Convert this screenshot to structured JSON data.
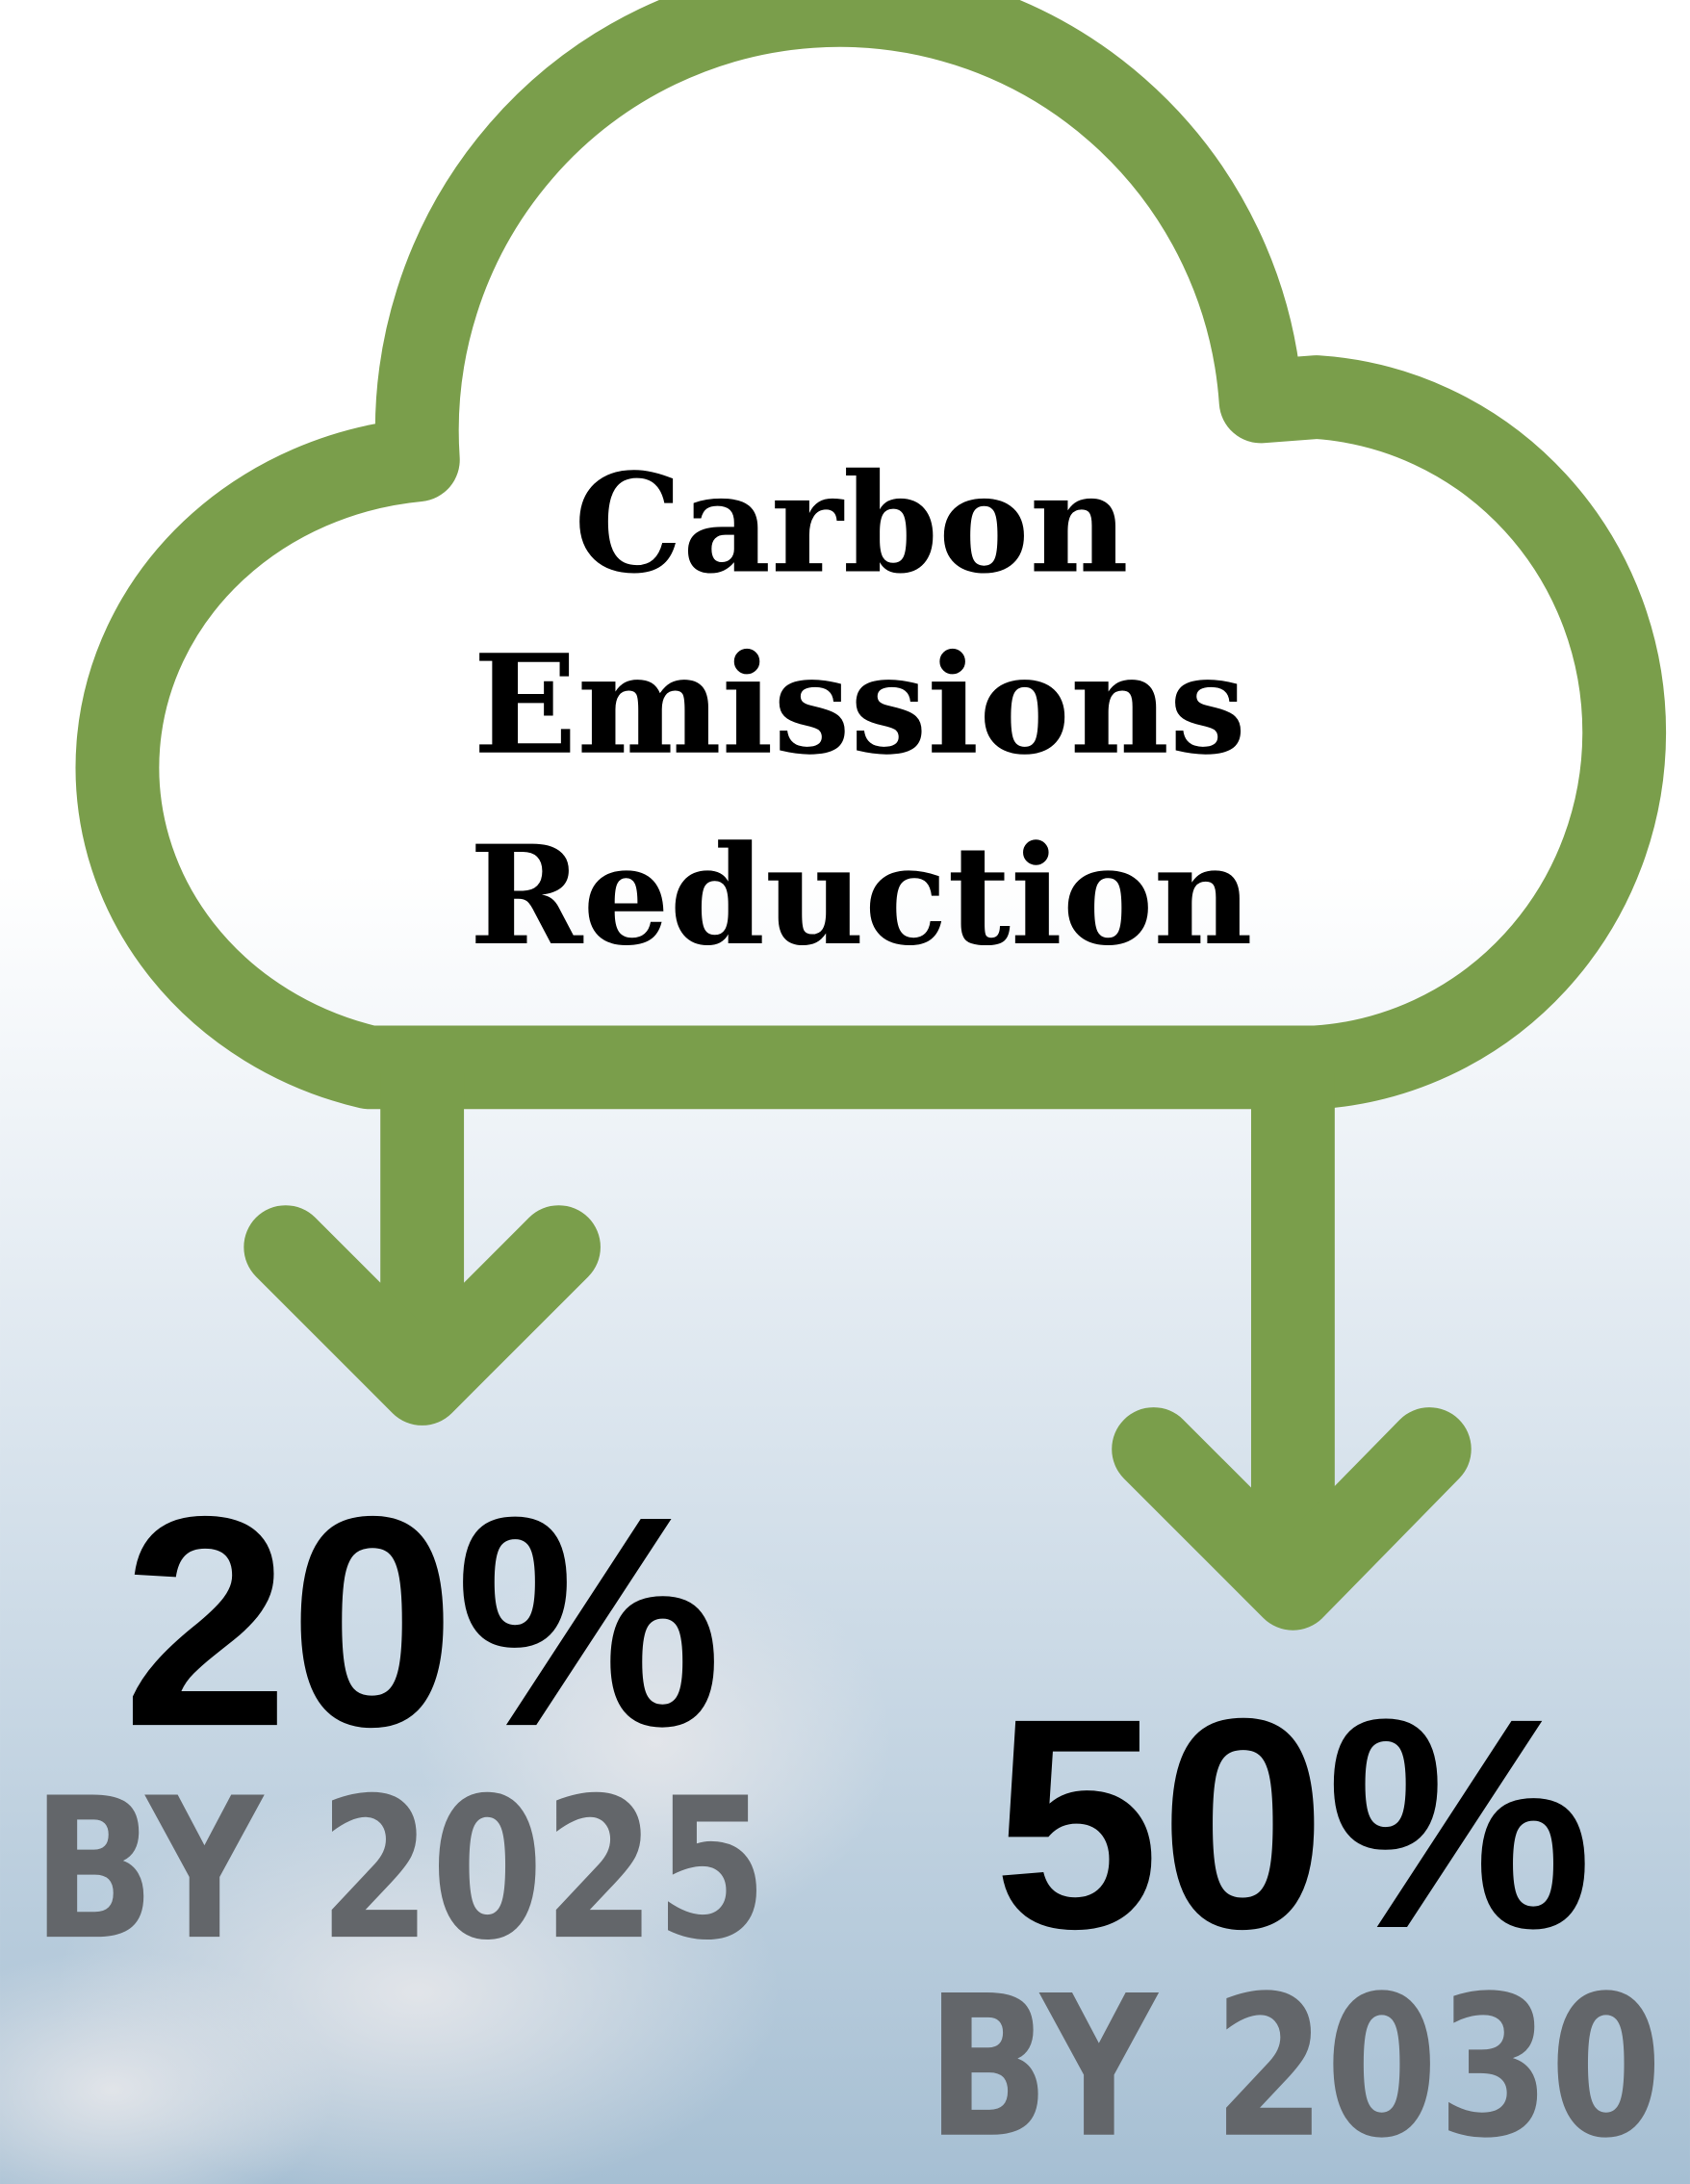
{
  "title": {
    "lines": [
      "Carbon",
      "Emissions",
      "Reduction"
    ]
  },
  "targets": [
    {
      "value": "20%",
      "label": "BY 2025"
    },
    {
      "value": "50%",
      "label": "BY 2030"
    }
  ]
}
